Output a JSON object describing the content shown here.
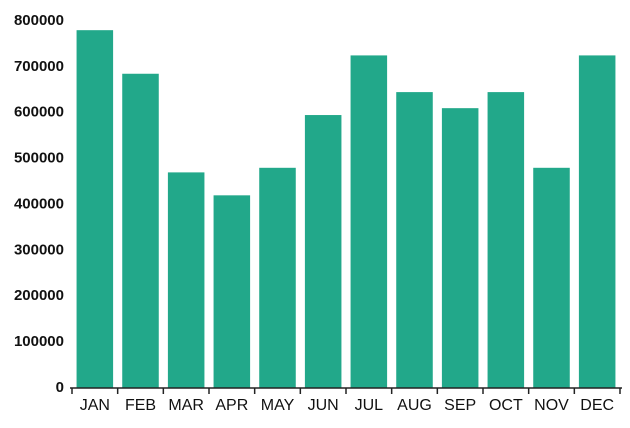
{
  "chart_data": {
    "type": "bar",
    "categories": [
      "JAN",
      "FEB",
      "MAR",
      "APR",
      "MAY",
      "JUN",
      "JUL",
      "AUG",
      "SEP",
      "OCT",
      "NOV",
      "DEC"
    ],
    "values": [
      780000,
      685000,
      470000,
      420000,
      480000,
      595000,
      725000,
      645000,
      610000,
      645000,
      480000,
      725000
    ],
    "color": "#22a88a",
    "ylim": [
      0,
      800000
    ],
    "yticks": [
      0,
      100000,
      200000,
      300000,
      400000,
      500000,
      600000,
      700000,
      800000
    ],
    "grid": false
  }
}
